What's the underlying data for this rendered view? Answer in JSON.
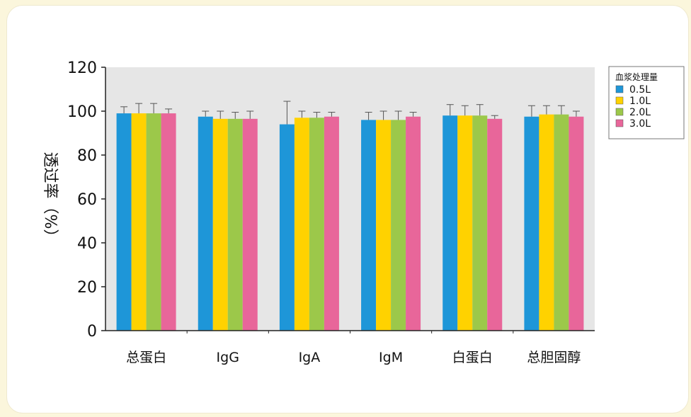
{
  "chart_data": {
    "type": "bar",
    "ylabel": "透过率（%）",
    "ylim": [
      0,
      120
    ],
    "yticks": [
      0,
      20,
      40,
      60,
      80,
      100,
      120
    ],
    "grid": false,
    "legend_position": "top-right",
    "legend_title": "血浆处理量",
    "categories": [
      "总蛋白",
      "IgG",
      "IgA",
      "IgM",
      "白蛋白",
      "总胆固醇"
    ],
    "series": [
      {
        "name": "0.5L",
        "color": "#1e96d8",
        "values": [
          99,
          97.5,
          94,
          96,
          98,
          97.5
        ],
        "errors": [
          3,
          2.5,
          10.5,
          3.5,
          5,
          5
        ]
      },
      {
        "name": "1.0L",
        "color": "#ffd200",
        "values": [
          99,
          96.5,
          97,
          96,
          98,
          98.5
        ],
        "errors": [
          4.5,
          3.5,
          3,
          4,
          4.5,
          4
        ]
      },
      {
        "name": "2.0L",
        "color": "#9cc84a",
        "values": [
          99,
          96.5,
          97,
          96,
          98,
          98.5
        ],
        "errors": [
          4.5,
          3,
          2.5,
          4,
          5,
          4
        ]
      },
      {
        "name": "3.0L",
        "color": "#e8669a",
        "values": [
          99,
          96.5,
          97.5,
          97.5,
          96.5,
          97.5
        ],
        "errors": [
          2,
          3.5,
          2,
          2,
          1.5,
          2.5
        ]
      }
    ]
  }
}
